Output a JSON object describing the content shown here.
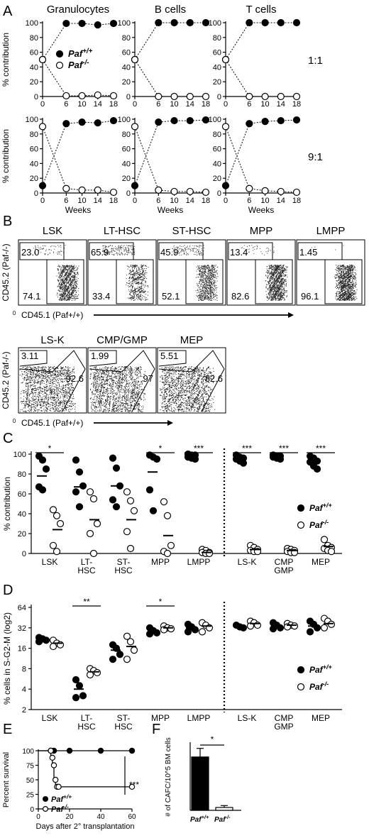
{
  "panel_letters": [
    "A",
    "B",
    "C",
    "D",
    "E",
    "F"
  ],
  "chart_data": [
    {
      "panel": "A",
      "type": "line",
      "columns": [
        "Granulocytes",
        "B cells",
        "T cells"
      ],
      "rows": [
        "1:1",
        "9:1"
      ],
      "ylabel": "% contribution",
      "xlabel": "Weeks",
      "x": [
        0,
        6,
        10,
        14,
        18
      ],
      "xticks": [
        "0",
        "6",
        "10",
        "14",
        "18"
      ],
      "yticks": [
        0,
        20,
        40,
        60,
        80,
        100
      ],
      "ylim": [
        0,
        100
      ],
      "legend": [
        "Paf+/+",
        "Paf-/-"
      ],
      "series": [
        {
          "row": 0,
          "col": 0,
          "filled": [
            50,
            99,
            99,
            97,
            99
          ],
          "open": [
            50,
            1,
            1,
            2,
            1
          ]
        },
        {
          "row": 0,
          "col": 1,
          "filled": [
            50,
            100,
            100,
            100,
            100
          ],
          "open": [
            50,
            0,
            0,
            0,
            0
          ]
        },
        {
          "row": 0,
          "col": 2,
          "filled": [
            50,
            100,
            100,
            100,
            100
          ],
          "open": [
            50,
            0,
            0,
            0,
            0
          ]
        },
        {
          "row": 1,
          "col": 0,
          "filled": [
            10,
            94,
            96,
            95,
            98
          ],
          "open": [
            90,
            6,
            4,
            4,
            1
          ]
        },
        {
          "row": 1,
          "col": 1,
          "filled": [
            10,
            96,
            98,
            98,
            99
          ],
          "open": [
            90,
            4,
            2,
            2,
            1
          ]
        },
        {
          "row": 1,
          "col": 2,
          "filled": [
            10,
            94,
            97,
            98,
            99
          ],
          "open": [
            90,
            6,
            3,
            2,
            1
          ]
        }
      ]
    },
    {
      "panel": "B",
      "type": "scatter",
      "ylabel": "CD45.2 (Paf-/-)",
      "xlabel": "CD45.1 (Paf+/+)",
      "axis_origin": "0",
      "row1": [
        {
          "title": "LSK",
          "top": "23.0",
          "bottom": "74.1"
        },
        {
          "title": "LT-HSC",
          "top": "65.9",
          "bottom": "33.4"
        },
        {
          "title": "ST-HSC",
          "top": "45.9",
          "bottom": "52.1"
        },
        {
          "title": "MPP",
          "top": "13.4",
          "bottom": "82.6"
        },
        {
          "title": "LMPP",
          "top": "1.45",
          "bottom": "96.1"
        }
      ],
      "row2": [
        {
          "title": "LS-K",
          "top": "3.11",
          "right": "92.6"
        },
        {
          "title": "CMP/GMP",
          "top": "1.99",
          "right": "97"
        },
        {
          "title": "MEP",
          "top": "5.51",
          "right": "82.6"
        }
      ]
    },
    {
      "panel": "C",
      "type": "scatter",
      "ylabel": "% contribution",
      "yticks": [
        0,
        20,
        40,
        60,
        80,
        100
      ],
      "ylim": [
        0,
        100
      ],
      "categories": [
        "LSK",
        "LT-\nHSC",
        "ST-\nHSC",
        "MPP",
        "LMPP",
        "LS-K",
        "CMP\nGMP",
        "MEP"
      ],
      "significance": [
        "*",
        "",
        "",
        "*",
        "***",
        "***",
        "***",
        "***"
      ],
      "legend": [
        "Paf+/+",
        "Paf-/-"
      ],
      "filled": [
        [
          98,
          94,
          85,
          67,
          64
        ],
        [
          94,
          82,
          68,
          62,
          47
        ],
        [
          96,
          86,
          68,
          54,
          47
        ],
        [
          99,
          97,
          95,
          64,
          43
        ],
        [
          100,
          99,
          99,
          97,
          96,
          95
        ],
        [
          99,
          97,
          96,
          95,
          93,
          91
        ],
        [
          99,
          98,
          98,
          97,
          96,
          95
        ],
        [
          98,
          96,
          93,
          92,
          88,
          85
        ]
      ],
      "open": [
        [
          44,
          38,
          30,
          8,
          2
        ],
        [
          62,
          55,
          30,
          20,
          0
        ],
        [
          62,
          53,
          43,
          22,
          5
        ],
        [
          52,
          38,
          8,
          2,
          0
        ],
        [
          4,
          3,
          1,
          1,
          0,
          0
        ],
        [
          8,
          6,
          4,
          3,
          2,
          2
        ],
        [
          5,
          4,
          3,
          2,
          1,
          1
        ],
        [
          14,
          8,
          6,
          5,
          3,
          2
        ]
      ],
      "means_filled": [
        78,
        67,
        68,
        82,
        98,
        95,
        97,
        92
      ],
      "means_open": [
        24,
        34,
        34,
        18,
        1,
        4,
        3,
        7
      ]
    },
    {
      "panel": "D",
      "type": "scatter",
      "yscale": "log2",
      "ylabel": "% cells in S-G2-M (log2)",
      "yticks": [
        2,
        4,
        8,
        16,
        32,
        64
      ],
      "ylim": [
        2,
        64
      ],
      "categories": [
        "LSK",
        "LT-\nHSC",
        "ST-\nHSC",
        "MPP",
        "LMPP",
        "LS-K",
        "CMP\nGMP",
        "MEP"
      ],
      "significance": [
        "",
        "**",
        "",
        "*",
        "",
        "",
        "",
        ""
      ],
      "legend": [
        "Paf+/+",
        "Paf-/-"
      ],
      "filled": [
        [
          23,
          22,
          21,
          20
        ],
        [
          5.5,
          4.5,
          3.2,
          3.0
        ],
        [
          18,
          16,
          13,
          11
        ],
        [
          32,
          29,
          27,
          26
        ],
        [
          36,
          33,
          30,
          28
        ],
        [
          35,
          33,
          32
        ],
        [
          38,
          35,
          32,
          31
        ],
        [
          40,
          36,
          32,
          28
        ]
      ],
      "open": [
        [
          21,
          19,
          18,
          17
        ],
        [
          8,
          7.5,
          7,
          6.5
        ],
        [
          24,
          20,
          15,
          11
        ],
        [
          34,
          32,
          31,
          30
        ],
        [
          38,
          35,
          32,
          28
        ],
        [
          40,
          38,
          35,
          34
        ],
        [
          37,
          35,
          34,
          33
        ],
        [
          44,
          40,
          36,
          32
        ]
      ],
      "means_filled": [
        21,
        4.0,
        15,
        28,
        32,
        34,
        34,
        34
      ],
      "means_open": [
        19,
        7.2,
        17,
        32,
        34,
        37,
        35,
        37
      ]
    },
    {
      "panel": "E",
      "type": "line",
      "ylabel": "Percent survival",
      "xlabel": "Days after 2° transplantation",
      "yticks": [
        0,
        25,
        50,
        75,
        100
      ],
      "xticks": [
        0,
        20,
        40,
        60
      ],
      "xlim": [
        0,
        60
      ],
      "ylim": [
        0,
        100
      ],
      "significance": "***",
      "legend": [
        "Paf+/+",
        "Paf-/-"
      ],
      "series": [
        {
          "name": "Paf+/+",
          "points": [
            [
              8,
              100
            ],
            [
              10,
              100
            ],
            [
              20,
              100
            ],
            [
              40,
              100
            ],
            [
              60,
              100
            ]
          ],
          "steps": [
            [
              0,
              100
            ],
            [
              60,
              100
            ]
          ]
        },
        {
          "name": "Paf-/-",
          "points": [
            [
              8,
              100
            ],
            [
              9,
              88
            ],
            [
              10,
              75
            ],
            [
              11,
              50
            ],
            [
              12,
              38
            ],
            [
              13,
              38
            ],
            [
              60,
              38
            ]
          ],
          "steps": [
            [
              0,
              100
            ],
            [
              8,
              100
            ],
            [
              8,
              88
            ],
            [
              9,
              88
            ],
            [
              9,
              75
            ],
            [
              10,
              75
            ],
            [
              10,
              50
            ],
            [
              11,
              50
            ],
            [
              11,
              38
            ],
            [
              60,
              38
            ]
          ]
        }
      ]
    },
    {
      "panel": "F",
      "type": "bar",
      "ylabel": "# of CAFC/10^5 BM cells",
      "categories": [
        "Paf+/+",
        "Paf-/-"
      ],
      "values": [
        5.6,
        0.3
      ],
      "errors": [
        0.9,
        0.2
      ],
      "ylim": [
        0,
        7
      ],
      "significance": "*"
    }
  ]
}
